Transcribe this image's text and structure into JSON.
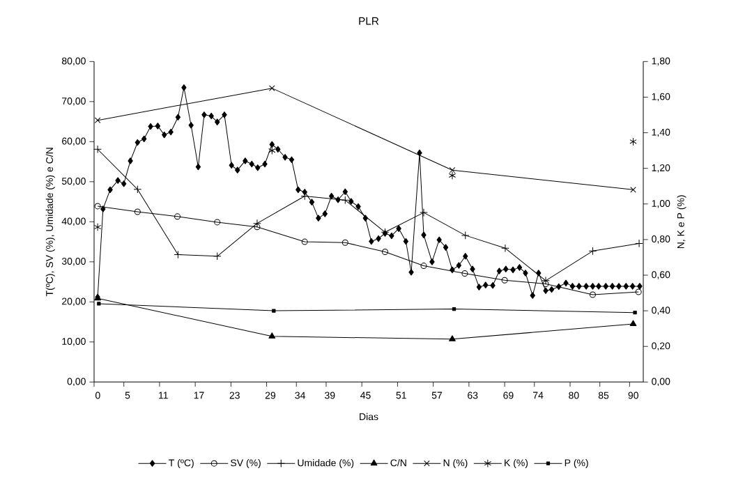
{
  "chart_data": {
    "type": "line",
    "title": "PLR",
    "xlabel": "Dias",
    "ylabel": "T(ºC), SV (%), Umidade (%) e C/N",
    "y2label": "N, K e P (%)",
    "xlim": [
      0,
      92.3
    ],
    "xticks": [
      0,
      5,
      11,
      17,
      23,
      29,
      34,
      39,
      45,
      51,
      57,
      63,
      69,
      74,
      80,
      85,
      90
    ],
    "ylim": [
      0,
      80
    ],
    "yticks": [
      {
        "value": 0,
        "label": "0,00"
      },
      {
        "value": 10,
        "label": "10,00"
      },
      {
        "value": 20,
        "label": "20,00"
      },
      {
        "value": 30,
        "label": "30,00"
      },
      {
        "value": 40,
        "label": "40,00"
      },
      {
        "value": 50,
        "label": "50,00"
      },
      {
        "value": 60,
        "label": "60,00"
      },
      {
        "value": 70,
        "label": "70,00"
      },
      {
        "value": 80,
        "label": "80,00"
      }
    ],
    "y2lim": [
      0,
      1.8
    ],
    "y2ticks": [
      {
        "value": 0,
        "label": "0,00"
      },
      {
        "value": 0.2,
        "label": "0,20"
      },
      {
        "value": 0.4,
        "label": "0,40"
      },
      {
        "value": 0.6,
        "label": "0,60"
      },
      {
        "value": 0.8,
        "label": "0,80"
      },
      {
        "value": 1.0,
        "label": "1,00"
      },
      {
        "value": 1.2,
        "label": "1,20"
      },
      {
        "value": 1.4,
        "label": "1,40"
      },
      {
        "value": 1.6,
        "label": "1,60"
      },
      {
        "value": 1.8,
        "label": "1,80"
      }
    ],
    "grid": false,
    "legend": "bottom",
    "series": [
      {
        "name": "T (ºC)",
        "color": "#000000",
        "marker": "diamond",
        "x": [
          0.6,
          1.5,
          2.7,
          4.0,
          5.0,
          6.1,
          7.3,
          8.4,
          9.5,
          10.7,
          11.8,
          12.9,
          14.1,
          15.1,
          16.3,
          17.5,
          18.5,
          19.7,
          20.7,
          21.9,
          23.1,
          24.1,
          25.4,
          26.5,
          27.5,
          28.7,
          29.9,
          30.9,
          32.1,
          33.2,
          34.3,
          35.4,
          36.6,
          37.7,
          38.8,
          39.9,
          41.0,
          42.2,
          43.2,
          44.4,
          45.6,
          46.6,
          47.8,
          48.9,
          50.0,
          51.2,
          52.4,
          53.3,
          54.7,
          55.4,
          56.8,
          58.0,
          59.1,
          60.2,
          61.3,
          62.4,
          63.6,
          64.7,
          65.8,
          67.0,
          68.1,
          69.2,
          70.4,
          71.5,
          72.5,
          73.7,
          74.7,
          75.9,
          76.9,
          78.1,
          79.3,
          80.4,
          81.5,
          82.7,
          83.8,
          84.8,
          86.0,
          87.1,
          88.2,
          89.4,
          90.5,
          91.7
        ],
        "values": [
          21.2,
          43.2,
          48.0,
          50.3,
          49.5,
          55.2,
          59.8,
          60.7,
          63.8,
          63.9,
          61.7,
          62.4,
          66.1,
          73.5,
          64.1,
          53.7,
          66.7,
          66.4,
          64.9,
          66.7,
          54.1,
          52.9,
          55.2,
          54.4,
          53.5,
          54.4,
          59.3,
          58.1,
          56.1,
          55.5,
          48.0,
          47.4,
          44.9,
          40.9,
          42.0,
          46.4,
          45.5,
          47.5,
          45.1,
          43.8,
          40.9,
          35.1,
          35.8,
          37.1,
          36.5,
          38.3,
          35.1,
          27.4,
          57.2,
          36.7,
          30.0,
          35.5,
          33.6,
          28.0,
          29.1,
          31.4,
          28.2,
          23.7,
          24.2,
          24.1,
          27.7,
          28.2,
          28.0,
          28.6,
          27.2,
          21.6,
          27.2,
          22.8,
          23.1,
          23.8,
          24.7,
          23.9,
          23.9,
          23.9,
          23.9,
          23.9,
          23.9,
          23.9,
          23.9,
          23.9,
          23.9,
          23.9
        ]
      },
      {
        "name": "SV (%)",
        "color": "#000000",
        "marker": "circle",
        "x": [
          0.6,
          7.3,
          14.0,
          20.7,
          27.4,
          35.4,
          42.2,
          48.9,
          55.4,
          62.3,
          69.0,
          75.9,
          83.8,
          91.5
        ],
        "values": [
          43.9,
          42.5,
          41.3,
          39.9,
          38.7,
          35.0,
          34.8,
          32.5,
          29.0,
          27.1,
          25.4,
          24.5,
          21.8,
          22.5
        ]
      },
      {
        "name": "Umidade  (%)",
        "color": "#000000",
        "marker": "plus",
        "x": [
          0.6,
          7.3,
          14.1,
          20.7,
          27.4,
          35.4,
          42.2,
          48.9,
          55.4,
          62.4,
          69.1,
          75.9,
          83.8,
          91.6
        ],
        "values": [
          58.1,
          48.1,
          31.8,
          31.4,
          39.6,
          46.4,
          45.4,
          37.4,
          42.3,
          36.6,
          33.4,
          25.3,
          32.7,
          34.6
        ]
      },
      {
        "name": "C/N",
        "color": "#000000",
        "marker": "triangle",
        "x": [
          0.6,
          29.9,
          60.2,
          90.6
        ],
        "values": [
          20.9,
          11.4,
          10.7,
          14.5
        ]
      },
      {
        "name": "N (%)",
        "color": "#000000",
        "marker": "x",
        "axis": "y2",
        "x": [
          0.6,
          29.9,
          60.2,
          90.6
        ],
        "values": [
          1.47,
          1.65,
          1.19,
          1.08
        ]
      },
      {
        "name": "K (%)",
        "color": "#000000",
        "marker": "cross",
        "type": "scatter",
        "axis": "y2",
        "x": [
          0.6,
          29.9,
          60.2,
          90.6
        ],
        "values": [
          0.87,
          1.3,
          1.16,
          1.35
        ]
      },
      {
        "name": "P (%)",
        "color": "#000000",
        "marker": "square",
        "axis": "y2",
        "x": [
          0.8,
          30.2,
          60.5,
          90.9
        ],
        "values": [
          0.44,
          0.4,
          0.41,
          0.39
        ]
      }
    ]
  }
}
